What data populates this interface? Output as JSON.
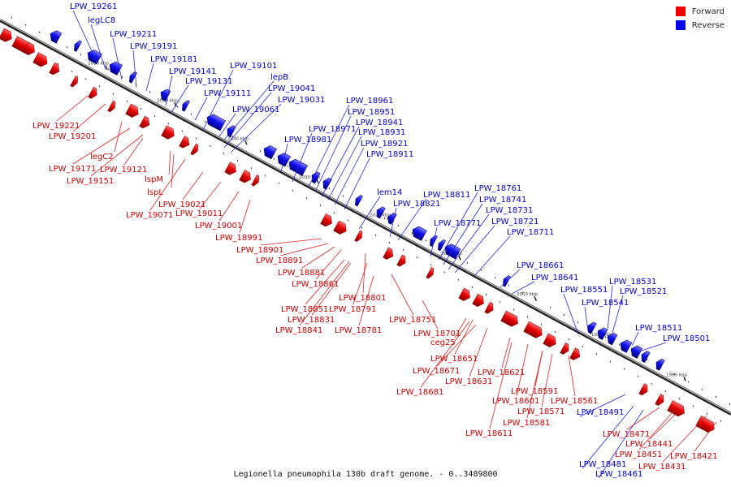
{
  "legend": {
    "forward_label": "Forward",
    "reverse_label": "Reverse",
    "forward_color": "#ee0000",
    "reverse_color": "#0000ee"
  },
  "caption": "Legionella pneumophila 130b draft genome. - 0..3489800",
  "axis": {
    "ticks": [
      "2060 kbp",
      "2050 kbp",
      "2040 kbp",
      "2030 kbp",
      "2020 kbp",
      "2010 kbp",
      "2000 kbp",
      "1990 kbp",
      "1980 kbp"
    ]
  },
  "reverse_labels": [
    "LPW_19261",
    "legLC8",
    "LPW_19211",
    "LPW_19191",
    "LPW_19181",
    "LPW_19141",
    "LPW_19131",
    "LPW_19111",
    "LPW_19101",
    "lepB",
    "LPW_19041",
    "LPW_19031",
    "LPW_19061",
    "LPW_18961",
    "LPW_18951",
    "LPW_18941",
    "LPW_18971",
    "LPW_18931",
    "LPW_18981",
    "LPW_18921",
    "LPW_18911",
    "lem14",
    "LPW_18811",
    "LPW_18821",
    "LPW_18761",
    "LPW_18741",
    "LPW_18731",
    "LPW_18771",
    "LPW_18721",
    "LPW_18711",
    "LPW_18661",
    "LPW_18641",
    "LPW_18551",
    "LPW_18531",
    "LPW_18521",
    "LPW_18541",
    "LPW_18511",
    "LPW_18501",
    "LPW_18491",
    "LPW_18481",
    "LPW_18461"
  ],
  "forward_labels": [
    "LPW_19221",
    "LPW_19201",
    "legC2",
    "LPW_19171",
    "LPW_19121",
    "LPW_19151",
    "lspM",
    "lspL",
    "LPW_19021",
    "LPW_19071",
    "LPW_19011",
    "LPW_19001",
    "LPW_18991",
    "LPW_18901",
    "LPW_18891",
    "LPW_18881",
    "LPW_18861",
    "LPW_18801",
    "LPW_18851",
    "LPW_18791",
    "LPW_18831",
    "LPW_18841",
    "LPW_18781",
    "LPW_18751",
    "LPW_18701",
    "ceg25",
    "LPW_18651",
    "LPW_18671",
    "LPW_18631",
    "LPW_18681",
    "LPW_18621",
    "LPW_18601",
    "LPW_18591",
    "LPW_18571",
    "LPW_18581",
    "LPW_18561",
    "LPW_18611",
    "LPW_18471",
    "LPW_18441",
    "LPW_18451",
    "LPW_18431",
    "LPW_18421"
  ]
}
